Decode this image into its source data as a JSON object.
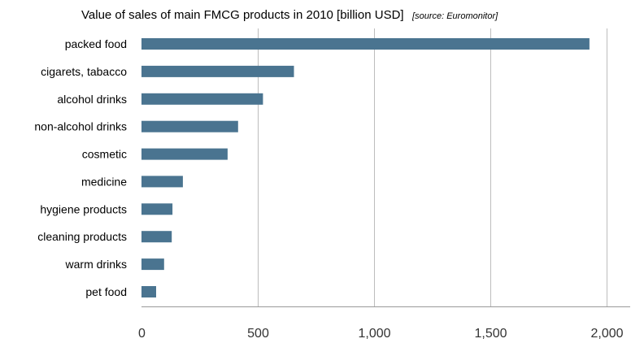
{
  "chart_data": {
    "type": "bar",
    "orientation": "horizontal",
    "title": "Value of sales of main FMCG products in 2010 [billion USD]",
    "subtitle": "[source: Euromonitor]",
    "xlabel": "",
    "ylabel": "",
    "categories": [
      "packed food",
      "cigarets, tabacco",
      "alcohol drinks",
      "non-alcohol drinks",
      "cosmetic",
      "medicine",
      "hygiene products",
      "cleaning products",
      "warm drinks",
      "pet food"
    ],
    "values": [
      1925,
      655,
      522,
      415,
      370,
      178,
      133,
      130,
      97,
      63
    ],
    "xlim": [
      0,
      2100
    ],
    "xticks": [
      0,
      500,
      1000,
      1500,
      2000
    ],
    "xtick_labels": [
      "0",
      "500",
      "1,000",
      "1,500",
      "2,000"
    ],
    "grid": "vertical",
    "bar_color": "#4a7490",
    "legend": "none"
  }
}
